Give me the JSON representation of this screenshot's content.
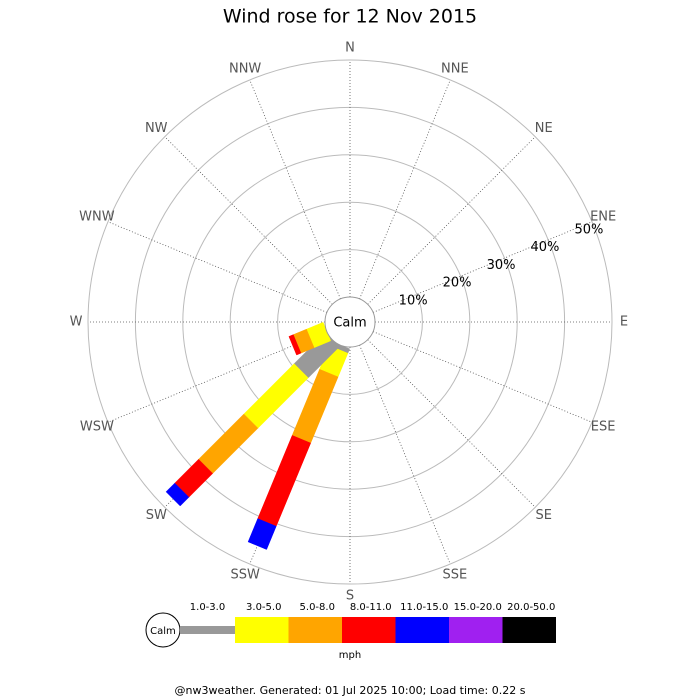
{
  "chart_data": {
    "type": "windrose",
    "title": "Wind rose for 12 Nov 2015",
    "categories": [
      "N",
      "NNE",
      "NE",
      "ENE",
      "E",
      "ESE",
      "SE",
      "SSE",
      "S",
      "SSW",
      "SW",
      "WSW",
      "W",
      "WNW",
      "NW",
      "NNW"
    ],
    "center_label": "Calm",
    "rlim": [
      0,
      50
    ],
    "rticks": [
      {
        "value": 10,
        "label": "10%"
      },
      {
        "value": 20,
        "label": "20%"
      },
      {
        "value": 30,
        "label": "30%"
      },
      {
        "value": 40,
        "label": "40%"
      },
      {
        "value": 50,
        "label": "50%"
      }
    ],
    "series": [
      {
        "name": "1.0-3.0",
        "color": "#999999",
        "values": [
          0,
          0,
          0,
          0,
          0,
          0,
          0,
          0,
          0,
          1,
          9.3,
          0,
          0,
          0,
          0,
          0
        ]
      },
      {
        "name": "3.0-5.0",
        "color": "#ffff00",
        "values": [
          0,
          0,
          0,
          0,
          0,
          0,
          0,
          0,
          0,
          5.4,
          15,
          3.8,
          0,
          0,
          0,
          0
        ]
      },
      {
        "name": "5.0-8.0",
        "color": "#ffa500",
        "values": [
          0,
          0,
          0,
          0,
          0,
          0,
          0,
          0,
          0,
          15.1,
          13.5,
          3,
          0,
          0,
          0,
          0
        ]
      },
      {
        "name": "8.0-11.0",
        "color": "#ff0000",
        "values": [
          0,
          0,
          0,
          0,
          0,
          0,
          0,
          0,
          0,
          19,
          7.1,
          1,
          0,
          0,
          0,
          0
        ]
      },
      {
        "name": "11.0-15.0",
        "color": "#0000ff",
        "values": [
          0,
          0,
          0,
          0,
          0,
          0,
          0,
          0,
          0,
          5.3,
          2.6,
          0,
          0,
          0,
          0,
          0
        ]
      },
      {
        "name": "15.0-20.0",
        "color": "#a020f0",
        "values": [
          0,
          0,
          0,
          0,
          0,
          0,
          0,
          0,
          0,
          0,
          0,
          0,
          0,
          0,
          0,
          0
        ]
      },
      {
        "name": "20.0-50.0",
        "color": "#000000",
        "values": [
          0,
          0,
          0,
          0,
          0,
          0,
          0,
          0,
          0,
          0,
          0,
          0,
          0,
          0,
          0,
          0
        ]
      }
    ],
    "legend_unit": "mph",
    "footer": "@nw3weather. Generated: 01 Jul 2025 10:00; Load time: 0.22 s"
  }
}
